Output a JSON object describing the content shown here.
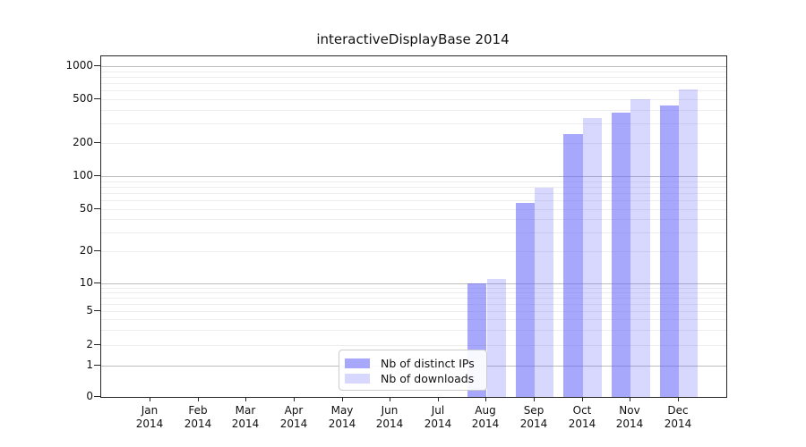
{
  "title": "interactiveDisplayBase 2014",
  "chart_data": {
    "type": "bar",
    "title": "interactiveDisplayBase 2014",
    "categories": [
      "Jan 2014",
      "Feb 2014",
      "Mar 2014",
      "Apr 2014",
      "May 2014",
      "Jun 2014",
      "Jul 2014",
      "Aug 2014",
      "Sep 2014",
      "Oct 2014",
      "Nov 2014",
      "Dec 2014"
    ],
    "series": [
      {
        "name": "Nb of distinct IPs",
        "color": "rgba(100,100,250,0.57)",
        "values": [
          0,
          0,
          0,
          0,
          0,
          0,
          0,
          10,
          57,
          240,
          380,
          440
        ]
      },
      {
        "name": "Nb of downloads",
        "color": "rgba(100,100,250,0.25)",
        "values": [
          0,
          0,
          0,
          0,
          0,
          0,
          0,
          11,
          78,
          340,
          500,
          620
        ]
      }
    ],
    "xlabel": "",
    "ylabel": "",
    "yscale": "symlog (log above 1, linear 0-1)",
    "yticks": [
      0,
      1,
      2,
      5,
      10,
      20,
      50,
      100,
      200,
      500,
      1000
    ],
    "ylim": [
      0,
      1200
    ],
    "grid": true,
    "legend_position": "lower center, inside plot"
  },
  "colors": {
    "bar_distinct_ips": "rgba(100,100,250,0.57)",
    "bar_downloads": "rgba(100,100,250,0.25)",
    "grid_major": "#bdbdbd",
    "grid_minor": "#ededed",
    "spine": "#262626"
  }
}
